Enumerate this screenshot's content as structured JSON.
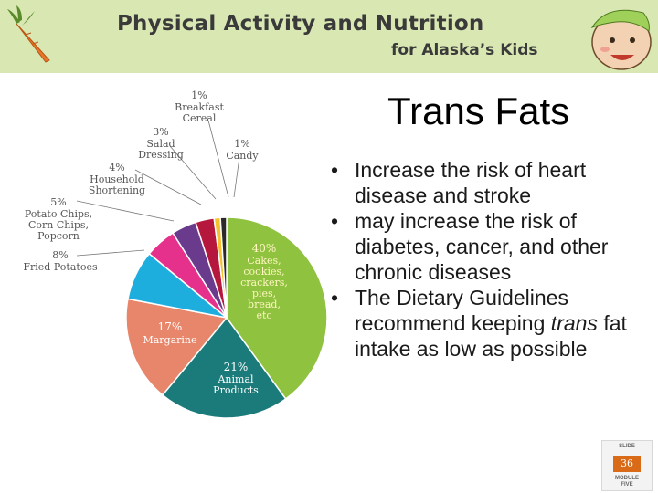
{
  "banner": {
    "title": "Physical Activity and Nutrition",
    "subtitle": "for Alaska’s Kids"
  },
  "slide": {
    "title": "Trans Fats",
    "bullets": [
      "Increase the risk of heart disease and stroke",
      "may increase the risk of diabetes, cancer, and other chronic diseases",
      "The Dietary Guidelines recommend keeping trans fat intake as low as possible"
    ],
    "bullet_italic_word": "trans",
    "bullet_glyph": "•"
  },
  "badge": {
    "top": "SLIDE",
    "number": "36",
    "bottom_line1": "MODULE",
    "bottom_line2": "FIVE"
  },
  "chart_data": {
    "type": "pie",
    "slices": [
      {
        "pct": "40%",
        "label": "Cakes, cookies, crackers, pies, bread, etc",
        "value": 40,
        "color": "#8fc23f"
      },
      {
        "pct": "21%",
        "label": "Animal Products",
        "value": 21,
        "color": "#1b7b7a"
      },
      {
        "pct": "17%",
        "label": "Margarine",
        "value": 17,
        "color": "#e8866c"
      },
      {
        "pct": "8%",
        "label": "Fried Potatoes",
        "value": 8,
        "color": "#1eaede"
      },
      {
        "pct": "5%",
        "label": "Potato Chips, Corn Chips, Popcorn",
        "value": 5,
        "color": "#e5318b"
      },
      {
        "pct": "4%",
        "label": "Household Shortening",
        "value": 4,
        "color": "#6a3a8d"
      },
      {
        "pct": "3%",
        "label": "Salad Dressing",
        "value": 3,
        "color": "#b5173d"
      },
      {
        "pct": "1%",
        "label": "Breakfast Cereal",
        "value": 1,
        "color": "#f5c12e"
      },
      {
        "pct": "1%",
        "label": "Candy",
        "value": 1,
        "color": "#2a2a2a"
      }
    ]
  },
  "colors": {
    "banner": "#d9e7b3",
    "badge_accent": "#d96a17"
  },
  "icons": {
    "logo": "carrot-icon",
    "mascot": "kid-mascot-icon"
  }
}
